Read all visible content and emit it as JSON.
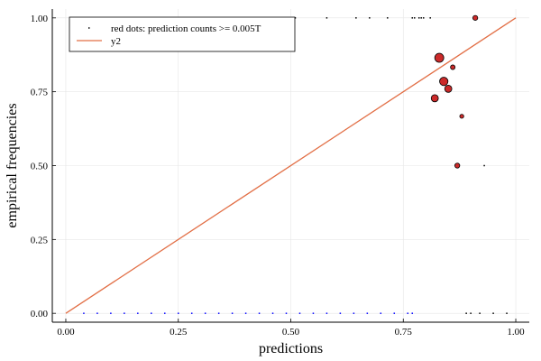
{
  "chart_data": {
    "type": "scatter",
    "xlabel": "predictions",
    "ylabel": "empirical frequencies",
    "xlim": [
      -0.03,
      1.03
    ],
    "ylim": [
      -0.03,
      1.03
    ],
    "x_ticks": [
      0.0,
      0.25,
      0.5,
      0.75,
      1.0
    ],
    "y_ticks": [
      0.0,
      0.25,
      0.5,
      0.75,
      1.0
    ],
    "x_tick_labels": [
      "0.00",
      "0.25",
      "0.50",
      "0.75",
      "1.00"
    ],
    "y_tick_labels": [
      "0.00",
      "0.25",
      "0.50",
      "0.75",
      "1.00"
    ],
    "grid": true,
    "legend_position": "top-left",
    "series": [
      {
        "name": "red dots: prediction counts >= 0.005T",
        "kind": "points",
        "color": "#cc2a2a",
        "edge_color": "#000000",
        "points": [
          {
            "x": 0.83,
            "y": 0.865,
            "weight": 1.0
          },
          {
            "x": 0.84,
            "y": 0.785,
            "weight": 0.9
          },
          {
            "x": 0.85,
            "y": 0.76,
            "weight": 0.7
          },
          {
            "x": 0.82,
            "y": 0.728,
            "weight": 0.7
          },
          {
            "x": 0.86,
            "y": 0.833,
            "weight": 0.3
          },
          {
            "x": 0.88,
            "y": 0.667,
            "weight": 0.2
          },
          {
            "x": 0.87,
            "y": 0.5,
            "weight": 0.35
          },
          {
            "x": 0.91,
            "y": 1.0,
            "weight": 0.35
          }
        ]
      },
      {
        "name": "",
        "kind": "ticks",
        "color": "#000000",
        "points": [
          {
            "x": 0.19,
            "y": 1.0
          },
          {
            "x": 0.5,
            "y": 1.0
          },
          {
            "x": 0.51,
            "y": 1.0
          },
          {
            "x": 0.58,
            "y": 1.0
          },
          {
            "x": 0.645,
            "y": 1.0
          },
          {
            "x": 0.675,
            "y": 1.0
          },
          {
            "x": 0.715,
            "y": 1.0
          },
          {
            "x": 0.77,
            "y": 1.0
          },
          {
            "x": 0.775,
            "y": 1.0
          },
          {
            "x": 0.785,
            "y": 1.0
          },
          {
            "x": 0.79,
            "y": 1.0
          },
          {
            "x": 0.795,
            "y": 1.0
          },
          {
            "x": 0.81,
            "y": 1.0
          },
          {
            "x": 0.93,
            "y": 0.5
          }
        ]
      },
      {
        "name": "",
        "kind": "ticks",
        "color": "#0000ff",
        "points": [
          {
            "x": 0.04,
            "y": 0.0
          },
          {
            "x": 0.07,
            "y": 0.0
          },
          {
            "x": 0.1,
            "y": 0.0
          },
          {
            "x": 0.13,
            "y": 0.0
          },
          {
            "x": 0.16,
            "y": 0.0
          },
          {
            "x": 0.19,
            "y": 0.0
          },
          {
            "x": 0.22,
            "y": 0.0
          },
          {
            "x": 0.25,
            "y": 0.0
          },
          {
            "x": 0.28,
            "y": 0.0
          },
          {
            "x": 0.31,
            "y": 0.0
          },
          {
            "x": 0.34,
            "y": 0.0
          },
          {
            "x": 0.37,
            "y": 0.0
          },
          {
            "x": 0.4,
            "y": 0.0
          },
          {
            "x": 0.43,
            "y": 0.0
          },
          {
            "x": 0.46,
            "y": 0.0
          },
          {
            "x": 0.49,
            "y": 0.0
          },
          {
            "x": 0.52,
            "y": 0.0
          },
          {
            "x": 0.55,
            "y": 0.0
          },
          {
            "x": 0.58,
            "y": 0.0
          },
          {
            "x": 0.61,
            "y": 0.0
          },
          {
            "x": 0.64,
            "y": 0.0
          },
          {
            "x": 0.67,
            "y": 0.0
          },
          {
            "x": 0.7,
            "y": 0.0
          },
          {
            "x": 0.73,
            "y": 0.0
          },
          {
            "x": 0.76,
            "y": 0.0
          },
          {
            "x": 0.77,
            "y": 0.0
          }
        ]
      },
      {
        "name": "",
        "kind": "ticks",
        "color": "#000000",
        "points": [
          {
            "x": 0.89,
            "y": 0.0
          },
          {
            "x": 0.9,
            "y": 0.0
          },
          {
            "x": 0.92,
            "y": 0.0
          },
          {
            "x": 0.95,
            "y": 0.0
          },
          {
            "x": 0.98,
            "y": 0.0
          }
        ]
      },
      {
        "name": "y2",
        "kind": "line",
        "color": "#e26f46",
        "x": [
          0.0,
          1.0
        ],
        "y": [
          0.0,
          1.0
        ]
      }
    ]
  }
}
